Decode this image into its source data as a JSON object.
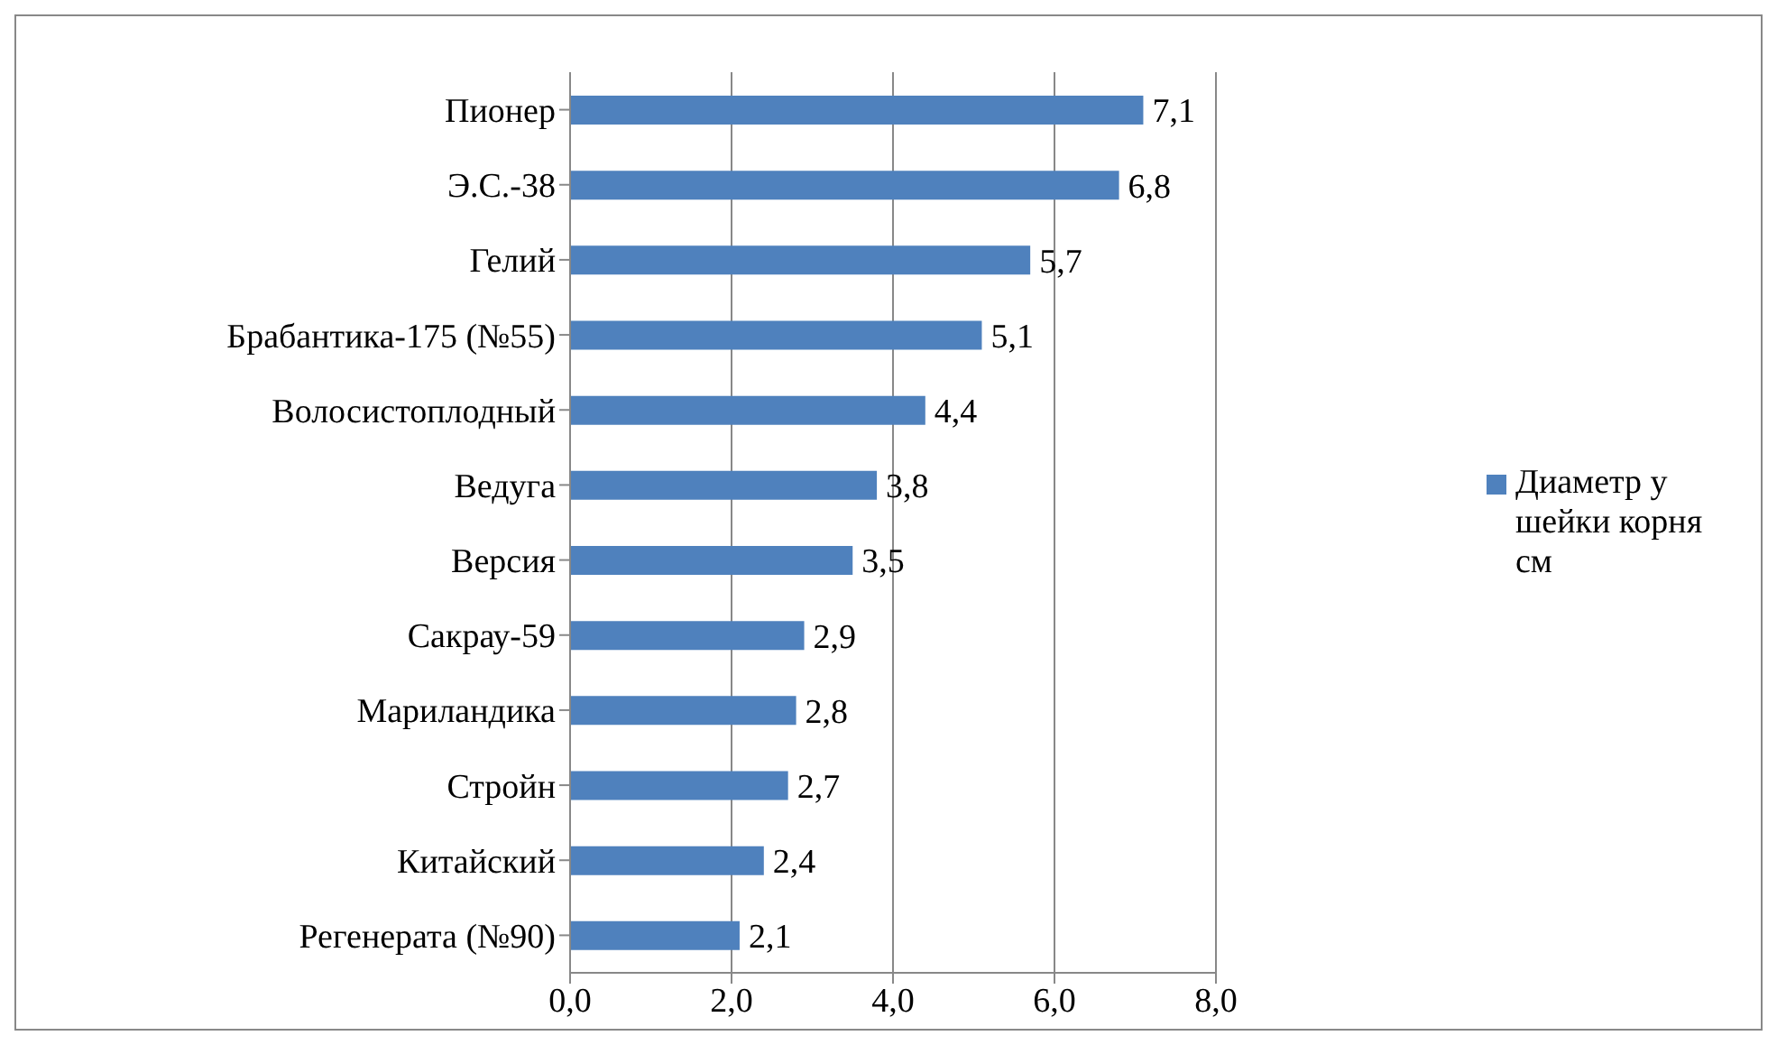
{
  "chart_data": {
    "type": "bar",
    "orientation": "horizontal",
    "categories": [
      "Пионер",
      "Э.С.-38",
      "Гелий",
      "Брабантика-175 (№55)",
      "Волосистоплодный",
      "Ведуга",
      "Версия",
      "Сакрау-59",
      "Мариландика",
      "Стройн",
      "Китайский",
      "Регенерата (№90)"
    ],
    "series": [
      {
        "name": "Диаметр у шейки корня см",
        "color": "#4f81bd",
        "values": [
          7.1,
          6.8,
          5.7,
          5.1,
          4.4,
          3.8,
          3.5,
          2.9,
          2.8,
          2.7,
          2.4,
          2.1
        ],
        "value_labels": [
          "7,1",
          "6,8",
          "5,7",
          "5,1",
          "4,4",
          "3,8",
          "3,5",
          "2,9",
          "2,8",
          "2,7",
          "2,4",
          "2,1"
        ]
      }
    ],
    "xlim": [
      0,
      8
    ],
    "xticks": [
      {
        "value": 0,
        "label": "0,0"
      },
      {
        "value": 2,
        "label": "2,0"
      },
      {
        "value": 4,
        "label": "4,0"
      },
      {
        "value": 6,
        "label": "6,0"
      },
      {
        "value": 8,
        "label": "8,0"
      }
    ],
    "grid": "x",
    "legend": "right"
  }
}
